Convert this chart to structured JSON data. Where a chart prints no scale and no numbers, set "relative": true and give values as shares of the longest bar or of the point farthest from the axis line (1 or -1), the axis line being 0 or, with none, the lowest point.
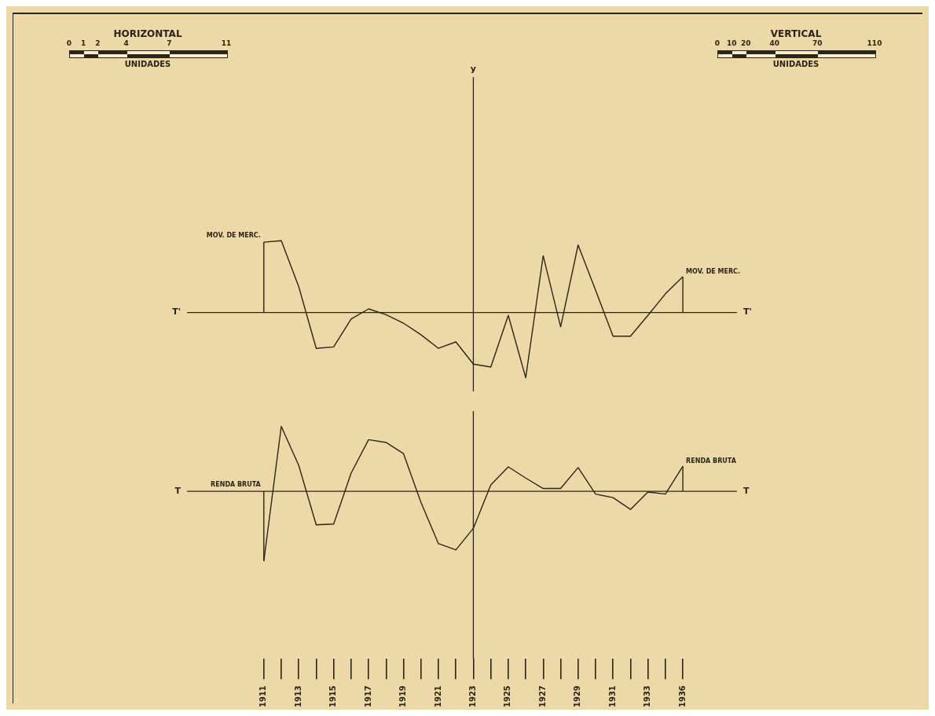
{
  "chart_data": [
    {
      "type": "line",
      "relative": true,
      "tick_labels": false,
      "marker": "none",
      "grid": false,
      "legend": false,
      "annotations": [
        "HORIZONTAL",
        "0",
        "1",
        "2",
        "4",
        "7",
        "11",
        "UNIDADES",
        "VERTICAL",
        "0",
        "10",
        "20",
        "40",
        "70",
        "110",
        "UNIDADES"
      ],
      "categories": [
        "1911",
        null,
        "1913",
        null,
        "1915",
        null,
        "1917",
        null,
        "1919",
        null,
        "1921",
        null,
        "1923",
        null,
        "1925",
        null,
        "1927",
        null,
        "1929",
        null,
        "1931",
        null,
        "1933",
        null,
        "1936"
      ],
      "series": [
        {
          "name": "MOV. DE MERC.",
          "color": "#2b2518",
          "values": [
            0.98,
            1.0,
            0.36,
            -0.5,
            -0.48,
            -0.09,
            0.05,
            -0.03,
            -0.15,
            -0.31,
            -0.5,
            -0.41,
            -0.72,
            -0.76,
            -0.04,
            -0.91,
            0.79,
            -0.2,
            0.94,
            0.31,
            -0.33,
            -0.33,
            -0.04,
            0.26,
            0.5
          ]
        }
      ],
      "ref_lines": [
        {
          "axis": "y",
          "value": 0,
          "label": "T'",
          "color": "#2b2518"
        },
        {
          "axis": "x",
          "value": "1923",
          "label": "y",
          "color": "#2b2518"
        }
      ]
    },
    {
      "type": "line",
      "relative": true,
      "marker": "none",
      "grid": false,
      "legend": false,
      "categories": [
        "1911",
        null,
        "1913",
        null,
        "1915",
        null,
        "1917",
        null,
        "1919",
        null,
        "1921",
        null,
        "1923",
        null,
        "1925",
        null,
        "1927",
        null,
        "1929",
        null,
        "1931",
        null,
        "1933",
        null,
        "1936"
      ],
      "series": [
        {
          "name": "RENDA BRUTA",
          "color": "#2b2518",
          "values": [
            -1.0,
            0.93,
            0.37,
            -0.48,
            -0.47,
            0.26,
            0.74,
            0.7,
            0.54,
            -0.16,
            -0.75,
            -0.84,
            -0.53,
            0.09,
            0.35,
            0.19,
            0.04,
            0.04,
            0.34,
            -0.04,
            -0.09,
            -0.26,
            -0.01,
            -0.04,
            0.36
          ]
        }
      ],
      "ref_lines": [
        {
          "axis": "y",
          "value": 0,
          "label": "T",
          "color": "#2b2518"
        },
        {
          "axis": "x",
          "value": "1923",
          "color": "#2b2518"
        }
      ]
    }
  ]
}
